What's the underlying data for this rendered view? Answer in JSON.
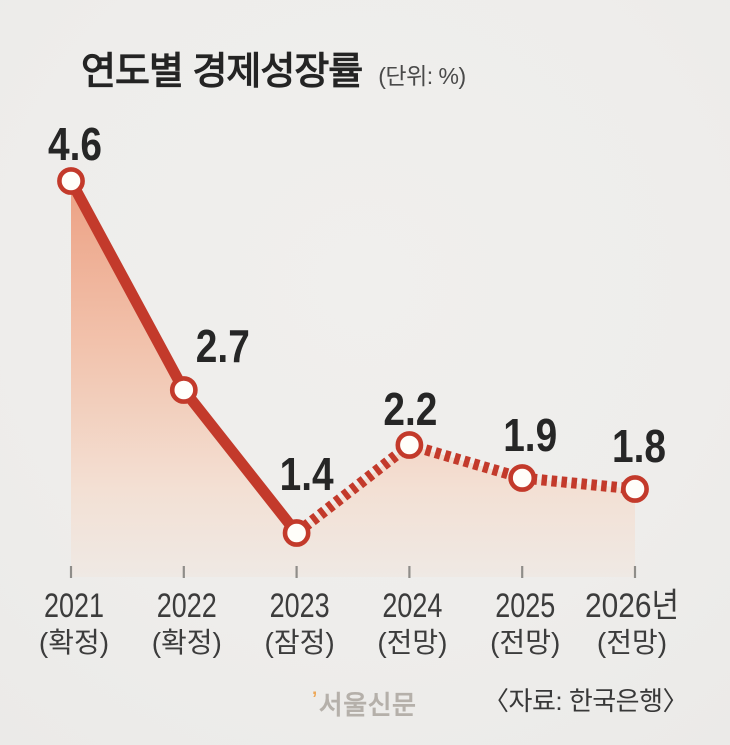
{
  "header": {
    "title": "연도별 경제성장률",
    "unit": "(단위: %)"
  },
  "chart_data": {
    "type": "line",
    "title": "연도별 경제성장률",
    "unit_label": "(단위: %)",
    "categories": [
      "2021",
      "2022",
      "2023",
      "2024",
      "2025",
      "2026년"
    ],
    "category_notes": [
      "(확정)",
      "(확정)",
      "(잠정)",
      "(전망)",
      "(전망)",
      "(전망)"
    ],
    "values": [
      4.6,
      2.7,
      1.4,
      2.2,
      1.9,
      1.8
    ],
    "value_labels": [
      "4.6",
      "2.7",
      "1.4",
      "2.2",
      "1.9",
      "1.8"
    ],
    "solid_until_index": 2,
    "dashed_from_index": 2,
    "y_axis_visible": false,
    "grid": false,
    "legend": false,
    "colors": {
      "line": "#c33a2b",
      "marker_fill": "#fffefa",
      "area_top": "#eca083",
      "area_mid": "#f2c3ad",
      "area_low": "#f3e0d4",
      "area_bottom": "#efe9e4",
      "value_label": "#262626",
      "axis_label": "#3c3c3c",
      "tick": "#8f8d89"
    }
  },
  "footer": {
    "watermark": "서울신문",
    "source": "〈자료: 한국은행〉"
  }
}
